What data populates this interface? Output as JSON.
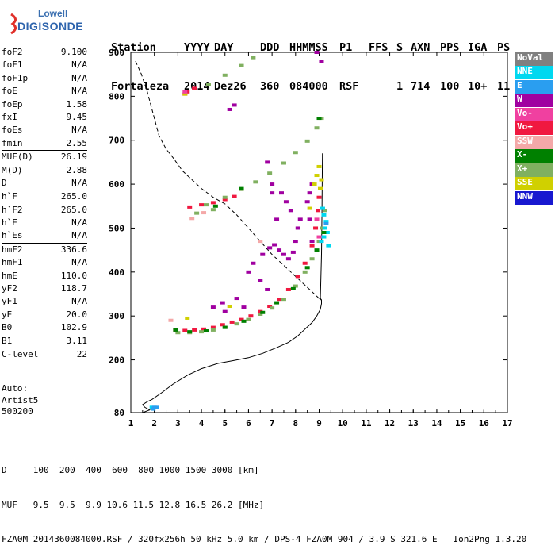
{
  "logo": {
    "line1": "Lowell",
    "line2": "DIGISONDE"
  },
  "header": {
    "labels": [
      "Station",
      "YYYY",
      "DAY",
      "DDD",
      "HHMMSS",
      "P1",
      "FFS",
      "S",
      "AXN",
      "PPS",
      "IGA",
      "PS"
    ],
    "values": [
      "Fortaleza",
      "2014",
      "Dez26",
      "360",
      "084000",
      "RSF",
      "1",
      "714",
      "100",
      "10+",
      "11"
    ]
  },
  "params": {
    "group1": [
      {
        "name": "foF2",
        "value": "9.100"
      },
      {
        "name": "foF1",
        "value": "N/A"
      },
      {
        "name": "foF1p",
        "value": "N/A"
      },
      {
        "name": "foE",
        "value": "N/A"
      },
      {
        "name": "foEp",
        "value": "1.58"
      },
      {
        "name": "fxI",
        "value": "9.45"
      },
      {
        "name": "foEs",
        "value": "N/A"
      },
      {
        "name": "fmin",
        "value": "2.55"
      }
    ],
    "group2": [
      {
        "name": "MUF(D)",
        "value": "26.19"
      },
      {
        "name": "M(D)",
        "value": "2.88"
      },
      {
        "name": "D",
        "value": "N/A"
      }
    ],
    "group3": [
      {
        "name": "h`F",
        "value": "265.0"
      },
      {
        "name": "h`F2",
        "value": "265.0"
      },
      {
        "name": "h`E",
        "value": "N/A"
      },
      {
        "name": "h`Es",
        "value": "N/A"
      }
    ],
    "group4": [
      {
        "name": "hmF2",
        "value": "336.6"
      },
      {
        "name": "hmF1",
        "value": "N/A"
      },
      {
        "name": "hmE",
        "value": "110.0"
      },
      {
        "name": "yF2",
        "value": "118.7"
      },
      {
        "name": "yF1",
        "value": "N/A"
      },
      {
        "name": "yE",
        "value": "20.0"
      },
      {
        "name": "B0",
        "value": "102.9"
      },
      {
        "name": "B1",
        "value": "3.11"
      }
    ],
    "group5": [
      {
        "name": "C-level",
        "value": "22"
      }
    ]
  },
  "auto": {
    "line1": "Auto:",
    "line2": "Artist5",
    "line3": "500200"
  },
  "legend": [
    {
      "label": "NoVal",
      "color": "#808080"
    },
    {
      "label": "NNE",
      "color": "#00d8f0"
    },
    {
      "label": "E",
      "color": "#2a9ef0"
    },
    {
      "label": "W",
      "color": "#a000a0"
    },
    {
      "label": "Vo-",
      "color": "#f040a0"
    },
    {
      "label": "Vo+",
      "color": "#f01840"
    },
    {
      "label": "SSW",
      "color": "#f4a8a8"
    },
    {
      "label": "X-",
      "color": "#008000"
    },
    {
      "label": "X+",
      "color": "#80b060"
    },
    {
      "label": "SSE",
      "color": "#d0d000"
    },
    {
      "label": "NNW",
      "color": "#1818d0"
    }
  ],
  "footer": {
    "line1": "D     100  200  400  600  800 1000 1500 3000 [km]",
    "line2": "MUF   9.5  9.5  9.9 10.6 11.5 12.8 16.5 26.2 [MHz]",
    "line3": "FZA0M_2014360084000.RSF / 320fx256h 50 kHz 5.0 km / DPS-4 FZA0M 904 / 3.9 S 321.6 E   Ion2Png 1.3.20"
  },
  "chart_data": {
    "type": "scatter",
    "xlabel": "",
    "ylabel": "",
    "xlim": [
      1,
      17
    ],
    "ylim": [
      80,
      900
    ],
    "xticks": [
      1,
      2,
      3,
      4,
      5,
      6,
      7,
      8,
      9,
      10,
      11,
      12,
      13,
      14,
      15,
      16,
      17
    ],
    "yticks": [
      80,
      200,
      300,
      400,
      500,
      600,
      700,
      800,
      900
    ],
    "grid": false,
    "series": [
      {
        "name": "Vo+",
        "color": "#f01840",
        "points": [
          [
            2.9,
            268
          ],
          [
            3.3,
            267
          ],
          [
            3.7,
            268
          ],
          [
            4.1,
            270
          ],
          [
            4.5,
            274
          ],
          [
            4.9,
            280
          ],
          [
            5.3,
            286
          ],
          [
            5.7,
            292
          ],
          [
            6.1,
            300
          ],
          [
            6.5,
            310
          ],
          [
            6.9,
            322
          ],
          [
            7.3,
            338
          ],
          [
            7.7,
            360
          ],
          [
            8.1,
            390
          ],
          [
            8.4,
            420
          ],
          [
            8.7,
            460
          ],
          [
            8.85,
            500
          ],
          [
            8.95,
            540
          ],
          [
            9.0,
            570
          ],
          [
            3.5,
            548
          ],
          [
            4.0,
            553
          ],
          [
            4.5,
            558
          ],
          [
            5.0,
            565
          ],
          [
            5.4,
            572
          ],
          [
            3.3,
            805
          ],
          [
            3.7,
            818
          ],
          [
            3.4,
            810
          ]
        ]
      },
      {
        "name": "X+",
        "color": "#80b060",
        "points": [
          [
            3.0,
            262
          ],
          [
            3.5,
            262
          ],
          [
            4.0,
            264
          ],
          [
            4.5,
            268
          ],
          [
            5.0,
            274
          ],
          [
            5.5,
            282
          ],
          [
            6.0,
            292
          ],
          [
            6.5,
            304
          ],
          [
            7.0,
            318
          ],
          [
            7.5,
            338
          ],
          [
            8.0,
            368
          ],
          [
            8.4,
            400
          ],
          [
            8.7,
            430
          ],
          [
            9.0,
            470
          ],
          [
            9.15,
            500
          ],
          [
            9.25,
            540
          ],
          [
            4.2,
            553
          ],
          [
            5.0,
            570
          ],
          [
            5.7,
            588
          ],
          [
            6.3,
            605
          ],
          [
            6.9,
            625
          ],
          [
            7.5,
            648
          ],
          [
            8.0,
            672
          ],
          [
            8.5,
            698
          ],
          [
            8.9,
            728
          ],
          [
            9.1,
            750
          ],
          [
            4.3,
            826
          ],
          [
            5.0,
            848
          ],
          [
            5.7,
            870
          ],
          [
            6.2,
            888
          ],
          [
            3.8,
            534
          ],
          [
            4.5,
            542
          ]
        ]
      },
      {
        "name": "W",
        "color": "#a000a0",
        "points": [
          [
            6.6,
            440
          ],
          [
            6.9,
            455
          ],
          [
            7.1,
            462
          ],
          [
            7.3,
            450
          ],
          [
            7.5,
            440
          ],
          [
            7.7,
            430
          ],
          [
            7.9,
            445
          ],
          [
            8.0,
            470
          ],
          [
            8.1,
            500
          ],
          [
            8.2,
            520
          ],
          [
            7.8,
            540
          ],
          [
            7.6,
            560
          ],
          [
            7.4,
            580
          ],
          [
            7.0,
            600
          ],
          [
            8.5,
            560
          ],
          [
            8.6,
            580
          ],
          [
            8.7,
            600
          ],
          [
            8.6,
            520
          ],
          [
            8.7,
            470
          ],
          [
            6.0,
            400
          ],
          [
            6.5,
            380
          ],
          [
            6.8,
            360
          ],
          [
            5.5,
            340
          ],
          [
            5.8,
            320
          ],
          [
            4.5,
            320
          ],
          [
            4.9,
            330
          ],
          [
            5.0,
            310
          ],
          [
            6.2,
            420
          ],
          [
            7.2,
            520
          ],
          [
            7.0,
            580
          ],
          [
            6.8,
            650
          ],
          [
            9.1,
            880
          ],
          [
            8.9,
            900
          ],
          [
            5.4,
            780
          ],
          [
            5.2,
            770
          ]
        ]
      },
      {
        "name": "NNE",
        "color": "#00d8f0",
        "points": [
          [
            9.1,
            470
          ],
          [
            9.2,
            480
          ],
          [
            9.25,
            500
          ],
          [
            9.3,
            515
          ],
          [
            9.2,
            530
          ],
          [
            9.35,
            490
          ],
          [
            9.4,
            460
          ],
          [
            9.15,
            545
          ],
          [
            1.9,
            92
          ]
        ]
      },
      {
        "name": "SSE",
        "color": "#d0d000",
        "points": [
          [
            8.8,
            600
          ],
          [
            8.9,
            620
          ],
          [
            9.0,
            640
          ],
          [
            9.05,
            590
          ],
          [
            8.6,
            545
          ],
          [
            9.1,
            610
          ],
          [
            3.4,
            295
          ],
          [
            5.2,
            322
          ],
          [
            3.3,
            805
          ]
        ]
      },
      {
        "name": "X-",
        "color": "#008000",
        "points": [
          [
            2.9,
            268
          ],
          [
            3.5,
            264
          ],
          [
            4.2,
            266
          ],
          [
            5.0,
            274
          ],
          [
            5.8,
            288
          ],
          [
            6.6,
            308
          ],
          [
            7.2,
            330
          ],
          [
            7.9,
            362
          ],
          [
            8.5,
            410
          ],
          [
            8.9,
            450
          ],
          [
            9.2,
            490
          ],
          [
            4.6,
            550
          ],
          [
            5.7,
            590
          ],
          [
            9.0,
            750
          ]
        ]
      },
      {
        "name": "SSW",
        "color": "#f4a8a8",
        "points": [
          [
            2.7,
            290
          ],
          [
            3.6,
            522
          ],
          [
            4.1,
            535
          ],
          [
            6.5,
            470
          ]
        ]
      },
      {
        "name": "Vo-",
        "color": "#f040a0",
        "points": [
          [
            3.3,
            810
          ],
          [
            8.9,
            520
          ],
          [
            9.0,
            480
          ]
        ]
      },
      {
        "name": "E",
        "color": "#2a9ef0",
        "points": [
          [
            2.0,
            92
          ],
          [
            1.95,
            88
          ],
          [
            2.1,
            92
          ],
          [
            9.3,
            510
          ]
        ]
      },
      {
        "name": "NNW",
        "color": "#1818d0",
        "points": []
      },
      {
        "name": "NoVal",
        "color": "#808080",
        "points": []
      }
    ],
    "profile_solid": [
      [
        1.5,
        80
      ],
      [
        1.8,
        86
      ],
      [
        1.6,
        92
      ],
      [
        1.5,
        98
      ],
      [
        1.7,
        105
      ],
      [
        1.9,
        110
      ],
      [
        2.3,
        125
      ],
      [
        2.8,
        145
      ],
      [
        3.4,
        165
      ],
      [
        4.0,
        180
      ],
      [
        4.7,
        192
      ],
      [
        5.3,
        198
      ],
      [
        6.0,
        205
      ],
      [
        6.6,
        215
      ],
      [
        7.2,
        228
      ],
      [
        7.7,
        240
      ],
      [
        8.1,
        255
      ],
      [
        8.4,
        270
      ],
      [
        8.7,
        285
      ],
      [
        8.9,
        300
      ],
      [
        9.05,
        315
      ],
      [
        9.1,
        328
      ],
      [
        9.1,
        336.6
      ],
      [
        9.05,
        340
      ]
    ],
    "profile_dashed": [
      [
        1.2,
        880
      ],
      [
        1.45,
        850
      ],
      [
        1.7,
        810
      ],
      [
        1.95,
        760
      ],
      [
        2.2,
        710
      ],
      [
        2.5,
        680
      ],
      [
        2.8,
        660
      ],
      [
        3.2,
        630
      ],
      [
        3.6,
        610
      ],
      [
        4.0,
        590
      ],
      [
        4.5,
        570
      ],
      [
        5.0,
        555
      ],
      [
        5.5,
        530
      ],
      [
        6.0,
        500
      ],
      [
        6.5,
        470
      ],
      [
        7.0,
        440
      ],
      [
        7.5,
        415
      ],
      [
        7.9,
        395
      ],
      [
        8.2,
        380
      ],
      [
        8.5,
        365
      ],
      [
        8.7,
        355
      ],
      [
        8.9,
        345
      ],
      [
        9.05,
        337
      ]
    ],
    "spike": [
      [
        9.05,
        336
      ],
      [
        9.1,
        440
      ],
      [
        9.12,
        540
      ],
      [
        9.14,
        670
      ]
    ]
  }
}
